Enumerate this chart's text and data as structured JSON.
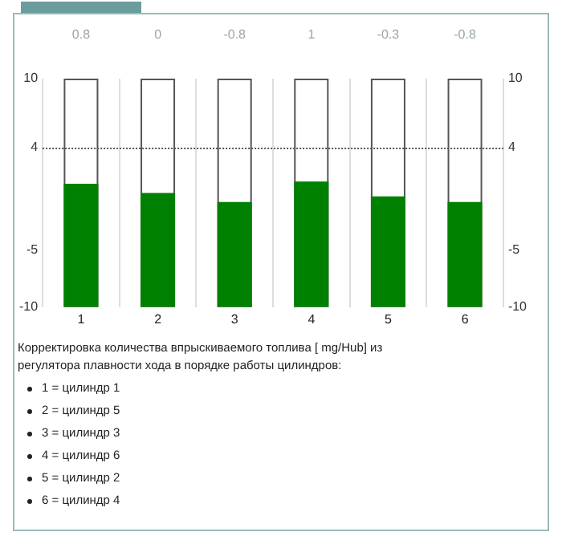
{
  "chart_data": {
    "type": "bar",
    "categories": [
      "1",
      "2",
      "3",
      "4",
      "5",
      "6"
    ],
    "values": [
      10.8,
      10,
      9.2,
      11,
      9.7,
      9.2
    ],
    "base": [
      -10,
      -10,
      -10,
      -10,
      -10,
      -10
    ],
    "value_labels": [
      "0.8",
      "0",
      "-0.8",
      "1",
      "-0.3",
      "-0.8"
    ],
    "color": "#008000",
    "ylim": [
      -10,
      10
    ],
    "yticks": [
      10,
      4,
      -5,
      -10
    ],
    "y2lim": [
      -10,
      10
    ],
    "y2ticks": [
      10,
      4,
      -5,
      -10
    ],
    "grid": "x",
    "ref_lines": [
      {
        "axis": "y",
        "value": 4,
        "line_style": "dotted",
        "color": "#555555"
      }
    ],
    "annotations": [
      "Корректировка количества впрыскиваемого топлива [ mg/Hub] из регулятора плавности хода в порядке работы цилиндров:",
      "1 = цилиндр 1",
      "2 = цилиндр 5",
      "3 = цилиндр 3",
      "4 = цилиндр 6",
      "5 = цилиндр 2",
      "6 = цилиндр 4"
    ]
  }
}
